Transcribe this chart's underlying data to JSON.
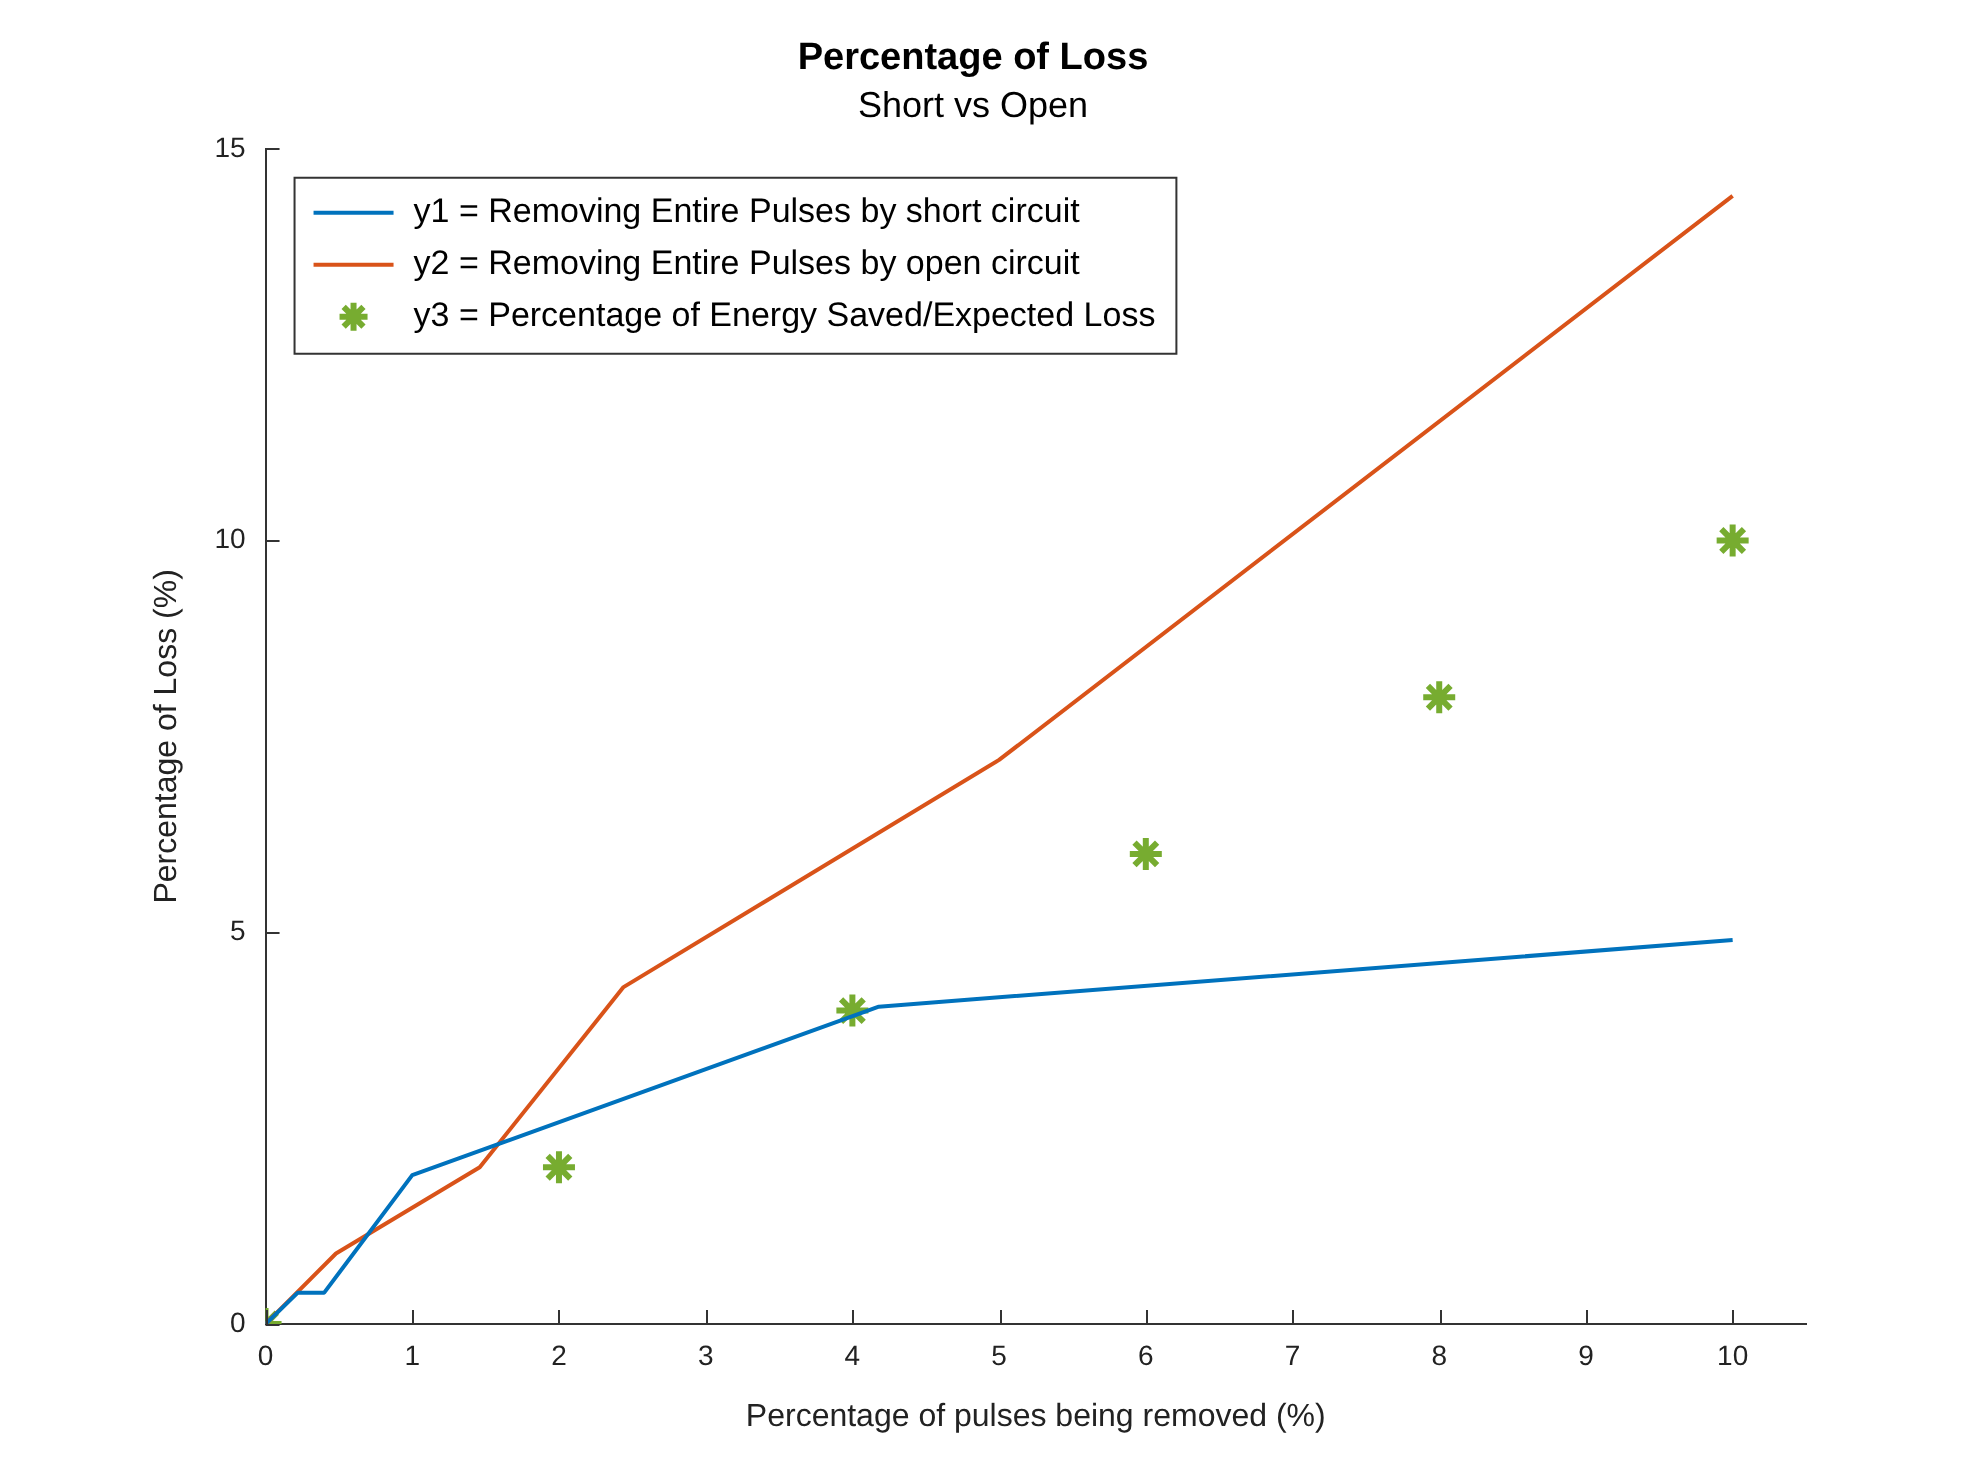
{
  "chart_data": {
    "type": "line",
    "title": "Percentage of Loss",
    "subtitle": "Short vs Open",
    "xlabel": "Percentage of pulses being removed (%)",
    "ylabel": "Percentage of Loss (%)",
    "xlim": [
      0,
      10.5
    ],
    "xticks": [
      0,
      1,
      2,
      3,
      4,
      5,
      6,
      7,
      8,
      9,
      10
    ],
    "ylim": [
      0,
      15
    ],
    "yticks": [
      0,
      5,
      10,
      15
    ],
    "grid": false,
    "legend": "top left",
    "series": [
      {
        "name": "y1 = Removing Entire Pulses by short circuit",
        "color": "#0072bd",
        "x": [
          0,
          0.22,
          0.4,
          1,
          4.18,
          10
        ],
        "values": [
          0,
          0.4,
          0.4,
          1.9,
          4.05,
          4.9
        ]
      },
      {
        "name": "y2 = Removing Entire Pulses by open circuit",
        "color": "#d95319",
        "x": [
          0,
          0.48,
          1.46,
          2.44,
          5,
          10
        ],
        "values": [
          0,
          0.9,
          2,
          4.3,
          7.2,
          14.4
        ]
      },
      {
        "name": "y3 = Percentage of Energy Saved/Expected Loss",
        "type": "scatter",
        "marker": "cross",
        "color": "#77ac30",
        "x": [
          0,
          2,
          4,
          6,
          8,
          10
        ],
        "values": [
          0,
          2,
          4,
          6,
          8,
          10
        ]
      }
    ]
  }
}
